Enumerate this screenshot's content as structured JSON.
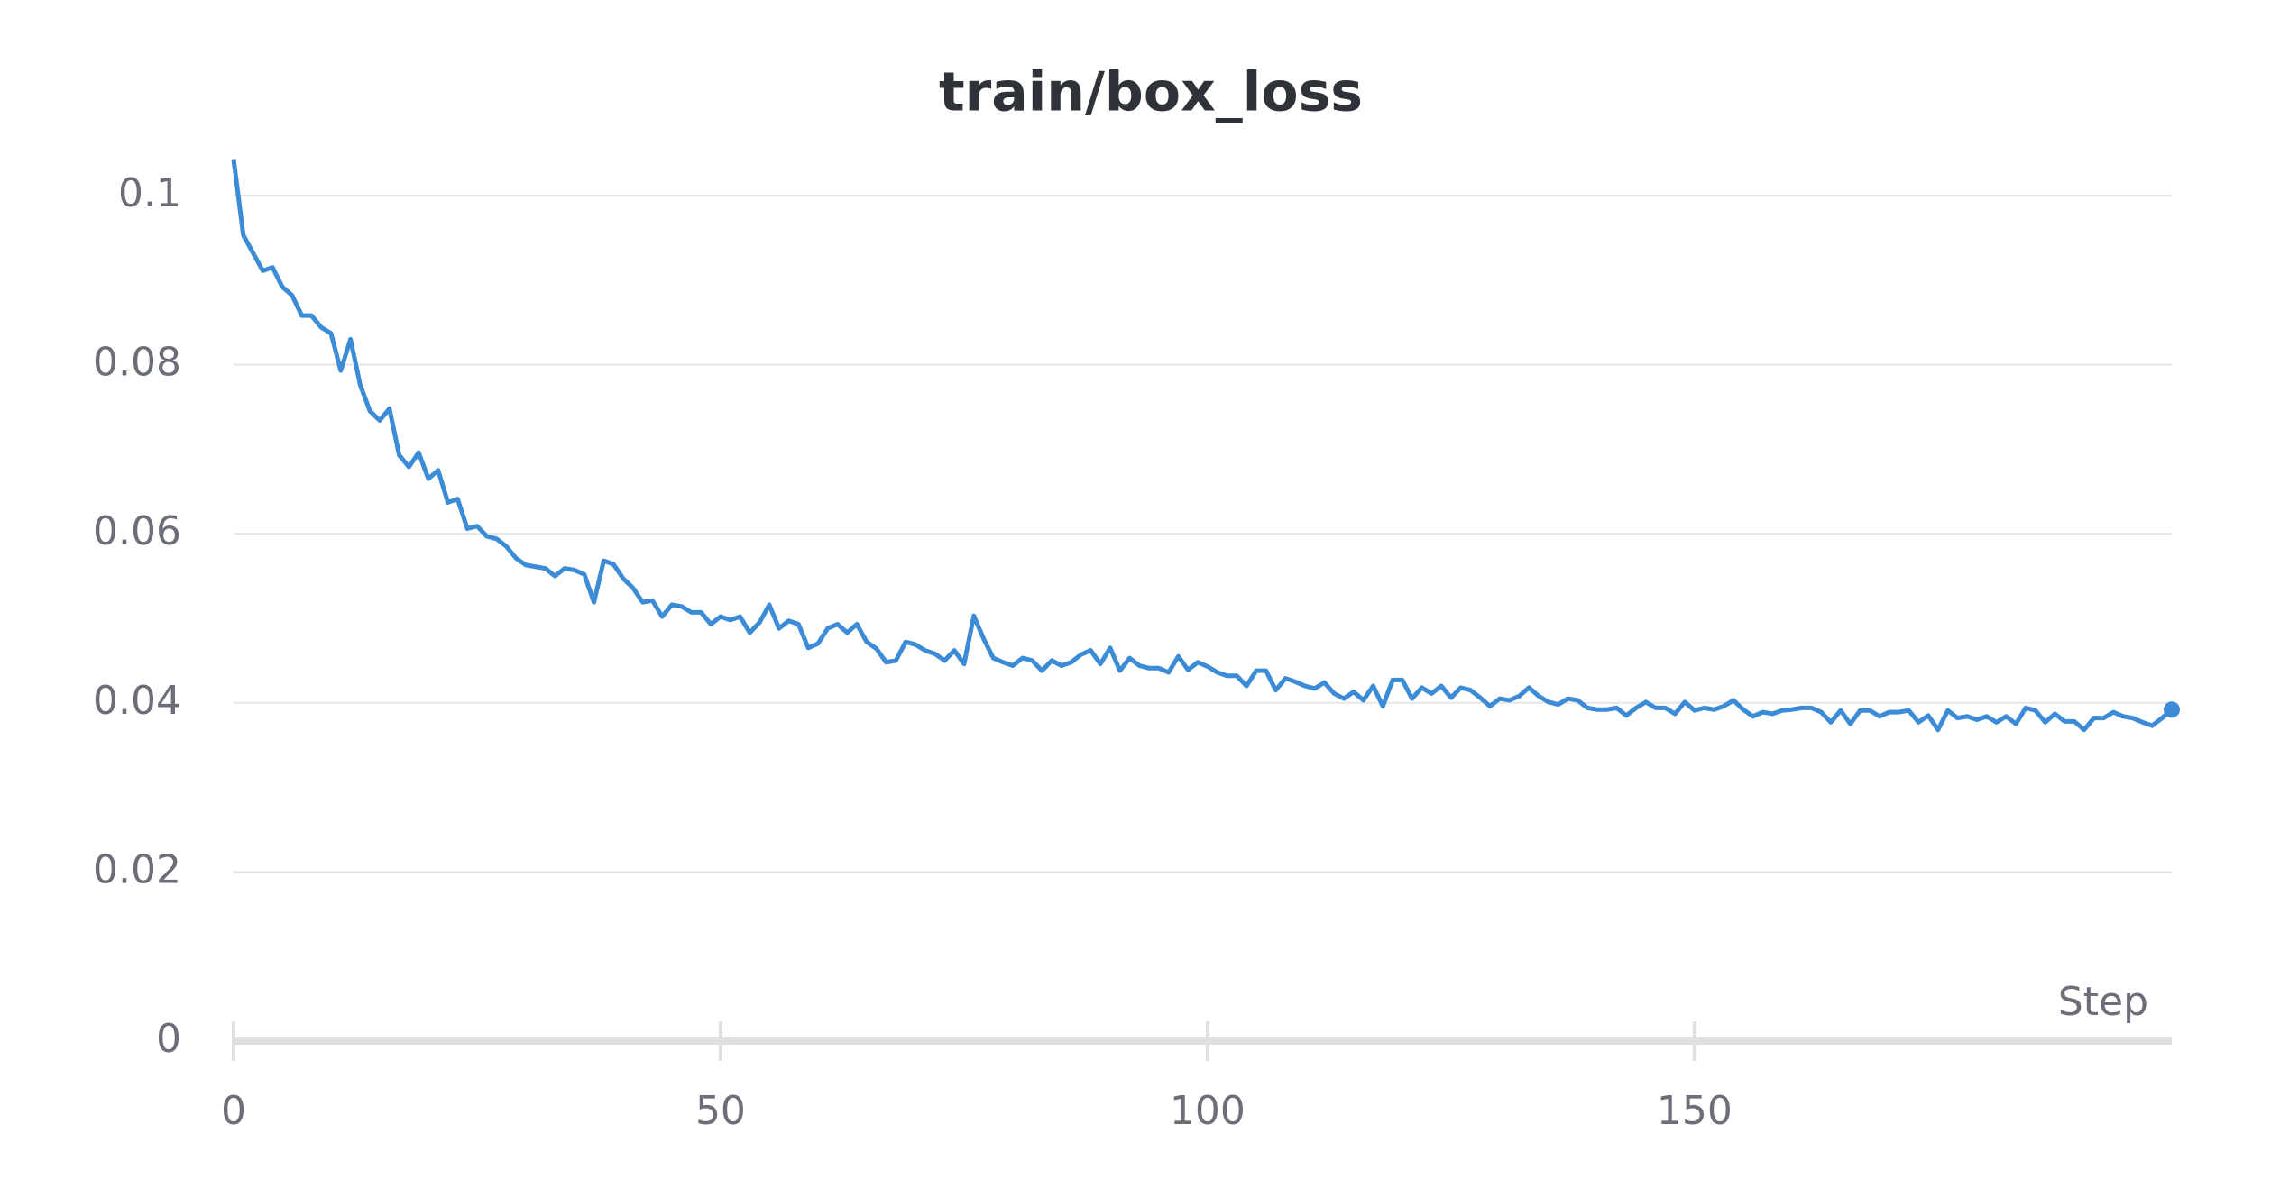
{
  "chart_data": {
    "type": "line",
    "title": "train/box_loss",
    "xlabel": "Step",
    "color": "#3b8bd6",
    "grid": true,
    "end_marker": true,
    "xlim": [
      0,
      199
    ],
    "xticks": [
      0,
      50,
      100,
      150
    ],
    "ylim": [
      0,
      0.105
    ],
    "yticks": [
      0,
      0.02,
      0.04,
      0.06,
      0.08,
      0.1
    ],
    "x": [
      0,
      1,
      2,
      3,
      4,
      5,
      6,
      7,
      8,
      9,
      10,
      11,
      12,
      13,
      14,
      15,
      16,
      17,
      18,
      19,
      20,
      21,
      22,
      23,
      24,
      25,
      26,
      27,
      28,
      29,
      30,
      31,
      32,
      33,
      34,
      35,
      36,
      37,
      38,
      39,
      40,
      41,
      42,
      43,
      44,
      45,
      46,
      47,
      48,
      49,
      50,
      51,
      52,
      53,
      54,
      55,
      56,
      57,
      58,
      59,
      60,
      61,
      62,
      63,
      64,
      65,
      66,
      67,
      68,
      69,
      70,
      71,
      72,
      73,
      74,
      75,
      76,
      77,
      78,
      79,
      80,
      81,
      82,
      83,
      84,
      85,
      86,
      87,
      88,
      89,
      90,
      91,
      92,
      93,
      94,
      95,
      96,
      97,
      98,
      99,
      100,
      101,
      102,
      103,
      104,
      105,
      106,
      107,
      108,
      109,
      110,
      111,
      112,
      113,
      114,
      115,
      116,
      117,
      118,
      119,
      120,
      121,
      122,
      123,
      124,
      125,
      126,
      127,
      128,
      129,
      130,
      131,
      132,
      133,
      134,
      135,
      136,
      137,
      138,
      139,
      140,
      141,
      142,
      143,
      144,
      145,
      146,
      147,
      148,
      149,
      150,
      151,
      152,
      153,
      154,
      155,
      156,
      157,
      158,
      159,
      160,
      161,
      162,
      163,
      164,
      165,
      166,
      167,
      168,
      169,
      170,
      171,
      172,
      173,
      174,
      175,
      176,
      177,
      178,
      179,
      180,
      181,
      182,
      183,
      184,
      185,
      186,
      187,
      188,
      189,
      190,
      191,
      192,
      193,
      194,
      195,
      196,
      197,
      198,
      199
    ],
    "values": [
      0.1043,
      0.0953,
      0.0932,
      0.0911,
      0.0915,
      0.0892,
      0.0882,
      0.0858,
      0.0858,
      0.0844,
      0.0837,
      0.0793,
      0.083,
      0.0776,
      0.0745,
      0.0734,
      0.0748,
      0.0693,
      0.0679,
      0.0696,
      0.0665,
      0.0675,
      0.0637,
      0.0641,
      0.0606,
      0.0609,
      0.0597,
      0.0594,
      0.0585,
      0.0571,
      0.0563,
      0.0561,
      0.0559,
      0.055,
      0.0559,
      0.0557,
      0.0552,
      0.0519,
      0.0568,
      0.0564,
      0.0547,
      0.0536,
      0.0519,
      0.0521,
      0.0502,
      0.0516,
      0.0514,
      0.0507,
      0.0507,
      0.0493,
      0.0502,
      0.0498,
      0.0502,
      0.0483,
      0.0495,
      0.0516,
      0.0488,
      0.0497,
      0.0493,
      0.0465,
      0.047,
      0.0488,
      0.0493,
      0.0483,
      0.0493,
      0.0472,
      0.0464,
      0.0448,
      0.045,
      0.0472,
      0.0469,
      0.0462,
      0.0458,
      0.045,
      0.0462,
      0.0446,
      0.0503,
      0.0476,
      0.0453,
      0.0448,
      0.0444,
      0.0453,
      0.045,
      0.0438,
      0.045,
      0.0444,
      0.0448,
      0.0457,
      0.0462,
      0.0446,
      0.0465,
      0.0438,
      0.0453,
      0.0444,
      0.0441,
      0.0441,
      0.0436,
      0.0455,
      0.0439,
      0.0448,
      0.0443,
      0.0436,
      0.0432,
      0.0432,
      0.042,
      0.0438,
      0.0438,
      0.0415,
      0.0429,
      0.0425,
      0.042,
      0.0417,
      0.0424,
      0.0411,
      0.0405,
      0.0413,
      0.0403,
      0.042,
      0.0396,
      0.0427,
      0.0427,
      0.0405,
      0.0418,
      0.0411,
      0.042,
      0.0406,
      0.0418,
      0.0415,
      0.0406,
      0.0396,
      0.0405,
      0.0403,
      0.0408,
      0.0418,
      0.0408,
      0.0401,
      0.0398,
      0.0405,
      0.0403,
      0.0394,
      0.0392,
      0.0392,
      0.0394,
      0.0385,
      0.0394,
      0.0401,
      0.0394,
      0.0394,
      0.0387,
      0.0401,
      0.0391,
      0.0394,
      0.0392,
      0.0396,
      0.0403,
      0.0392,
      0.0384,
      0.0389,
      0.0387,
      0.0391,
      0.0392,
      0.0394,
      0.0394,
      0.0389,
      0.0377,
      0.0391,
      0.0375,
      0.0391,
      0.0391,
      0.0384,
      0.0389,
      0.0389,
      0.0391,
      0.0377,
      0.0385,
      0.0368,
      0.0391,
      0.0382,
      0.0384,
      0.038,
      0.0384,
      0.0377,
      0.0384,
      0.0375,
      0.0394,
      0.0391,
      0.0377,
      0.0387,
      0.0378,
      0.0378,
      0.0368,
      0.0382,
      0.0382,
      0.0389,
      0.0384,
      0.0382,
      0.0377,
      0.0373,
      0.0382,
      0.0392
    ]
  }
}
